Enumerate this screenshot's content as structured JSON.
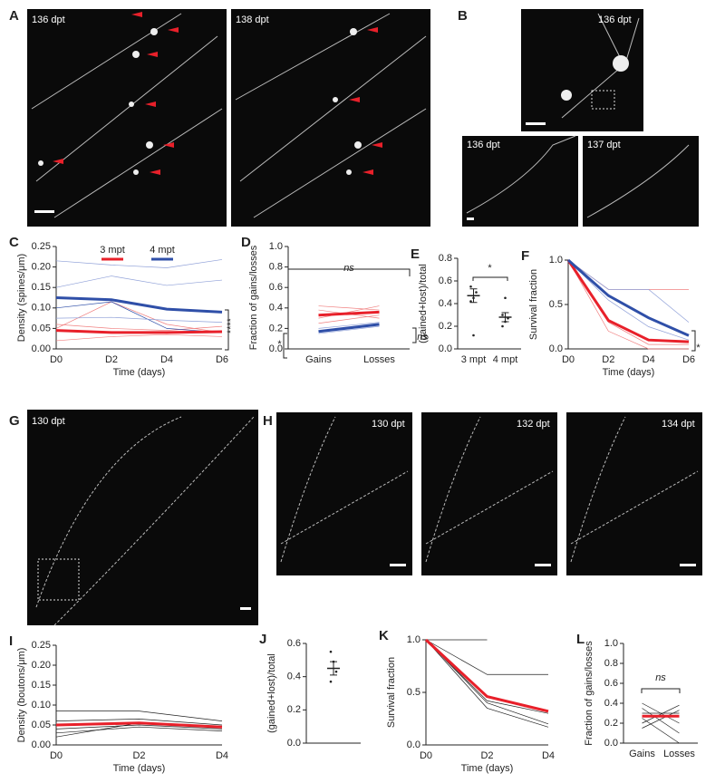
{
  "panel_labels": [
    "A",
    "B",
    "G",
    "H"
  ],
  "image_labels": [
    "136 dpt",
    "138 dpt",
    "136 dpt",
    "136 dpt",
    "137 dpt",
    "130 dpt",
    "130 dpt",
    "132 dpt",
    "134 dpt"
  ],
  "chart_data": [
    {
      "type": "line",
      "panel": "C",
      "ylabel": "Density (spines/μm)",
      "xlabel": "Time (days)",
      "categories": [
        "D0",
        "D2",
        "D4",
        "D6"
      ],
      "ylim": [
        0,
        0.25
      ],
      "yticks": [
        {
          "value": 0,
          "label": "0.00"
        },
        0.05,
        {
          "value": 0.1,
          "label": "0.10"
        },
        0.15,
        {
          "value": 0.2,
          "label": "0.20"
        },
        0.25
      ],
      "series": [
        {
          "name": "3 mpt",
          "color": "#e8202a",
          "values": [
            0.045,
            0.04,
            0.04,
            0.042
          ]
        },
        {
          "name": "4 mpt",
          "color": "#2f4fa8",
          "values": [
            0.125,
            0.12,
            0.097,
            0.09
          ]
        }
      ],
      "traces": [
        {
          "color": "#f08080",
          "values": [
            0.05,
            0.115,
            0.06,
            0.04
          ]
        },
        {
          "color": "#f08080",
          "values": [
            0.02,
            0.03,
            0.035,
            0.03
          ]
        },
        {
          "color": "#f08080",
          "values": [
            0.06,
            0.05,
            0.045,
            0.055
          ]
        },
        {
          "color": "#8fa0d8",
          "values": [
            0.215,
            0.205,
            0.198,
            0.218
          ]
        },
        {
          "color": "#8fa0d8",
          "values": [
            0.15,
            0.178,
            0.155,
            0.168
          ]
        },
        {
          "color": "#2f4fa8",
          "values": [
            0.1,
            0.115,
            0.05,
            0.04
          ]
        },
        {
          "color": "#8fa0d8",
          "values": [
            0.075,
            0.077,
            0.07,
            0.065
          ]
        }
      ],
      "annotations": [
        "****"
      ]
    },
    {
      "type": "line",
      "panel": "D",
      "ylabel": "Fraction of gains/losses",
      "categories": [
        "Gains",
        "Losses"
      ],
      "ylim": [
        0,
        1
      ],
      "yticks": [
        {
          "value": 0,
          "label": "0.0"
        },
        0.2,
        0.4,
        0.6,
        0.8,
        {
          "value": 1,
          "label": "1.0"
        }
      ],
      "series": [
        {
          "color": "#e8202a",
          "values": [
            0.33,
            0.36
          ]
        },
        {
          "color": "#2f4fa8",
          "values": [
            0.17,
            0.24
          ]
        }
      ],
      "traces": [
        {
          "color": "#f08080",
          "values": [
            0.3,
            0.42
          ]
        },
        {
          "color": "#f08080",
          "values": [
            0.38,
            0.3
          ]
        },
        {
          "color": "#f08080",
          "values": [
            0.25,
            0.33
          ]
        },
        {
          "color": "#f08080",
          "values": [
            0.42,
            0.38
          ]
        },
        {
          "color": "#8fa0d8",
          "values": [
            0.15,
            0.22
          ]
        },
        {
          "color": "#8fa0d8",
          "values": [
            0.2,
            0.26
          ]
        }
      ],
      "annotations": [
        "ns",
        "ns",
        "*"
      ]
    },
    {
      "type": "dot",
      "panel": "E",
      "ylabel": "(gained+lost)/total",
      "ylim": [
        0,
        0.8
      ],
      "yticks": [
        {
          "value": 0,
          "label": "0.0"
        },
        0.2,
        0.4,
        0.6,
        0.8
      ],
      "groups": [
        {
          "category": "3 mpt",
          "values": [
            0.42,
            0.45,
            0.5,
            0.55,
            0.12
          ],
          "mean": 0.47,
          "error": 0.06
        },
        {
          "category": "4 mpt",
          "values": [
            0.2,
            0.24,
            0.27,
            0.3,
            0.45
          ],
          "mean": 0.28,
          "error": 0.04
        }
      ],
      "annotations": [
        "*"
      ]
    },
    {
      "type": "line",
      "panel": "F",
      "ylabel": "Survival fraction",
      "xlabel": "Time (days)",
      "categories": [
        "D0",
        "D2",
        "D4",
        "D6"
      ],
      "ylim": [
        0,
        1
      ],
      "yticks": [
        {
          "value": 0,
          "label": "0.0"
        },
        0.5,
        {
          "value": 1,
          "label": "1.0"
        }
      ],
      "series": [
        {
          "color": "#e8202a",
          "values": [
            1,
            0.32,
            0.1,
            0.08
          ]
        },
        {
          "color": "#2f4fa8",
          "values": [
            1,
            0.6,
            0.35,
            0.15
          ]
        }
      ],
      "traces": [
        {
          "color": "#f08080",
          "values": [
            1,
            0.67,
            0.67,
            0.67
          ]
        },
        {
          "color": "#f08080",
          "values": [
            1,
            0.2,
            0,
            0
          ]
        },
        {
          "color": "#f08080",
          "values": [
            1,
            0.3,
            0.05,
            0.05
          ]
        },
        {
          "color": "#8fa0d8",
          "values": [
            1,
            0.67,
            0.67,
            0.3
          ]
        },
        {
          "color": "#8fa0d8",
          "values": [
            1,
            0.55,
            0.25,
            0.1
          ]
        }
      ],
      "annotations": [
        "*"
      ]
    },
    {
      "type": "line",
      "panel": "I",
      "ylabel": "Density (boutons/μm)",
      "xlabel": "Time (days)",
      "categories": [
        "D0",
        "D2",
        "D4"
      ],
      "ylim": [
        0,
        0.25
      ],
      "yticks": [
        {
          "value": 0,
          "label": "0.00"
        },
        0.05,
        {
          "value": 0.1,
          "label": "0.10"
        },
        0.15,
        {
          "value": 0.2,
          "label": "0.20"
        },
        0.25
      ],
      "series": [
        {
          "color": "#e8202a",
          "values": [
            0.05,
            0.055,
            0.045
          ]
        }
      ],
      "traces": [
        {
          "color": "#222",
          "values": [
            0.085,
            0.085,
            0.06
          ]
        },
        {
          "color": "#222",
          "values": [
            0.06,
            0.065,
            0.05
          ]
        },
        {
          "color": "#222",
          "values": [
            0.04,
            0.05,
            0.04
          ]
        },
        {
          "color": "#222",
          "values": [
            0.03,
            0.045,
            0.035
          ]
        },
        {
          "color": "#222",
          "values": [
            0.02,
            0.055,
            0.045
          ]
        }
      ]
    },
    {
      "type": "dot",
      "panel": "J",
      "ylabel": "(gained+lost)/total",
      "ylim": [
        0,
        0.6
      ],
      "yticks": [
        {
          "value": 0,
          "label": "0.0"
        },
        0.2,
        0.4,
        0.6
      ],
      "groups": [
        {
          "values": [
            0.55,
            0.49,
            0.43,
            0.37
          ],
          "mean": 0.45,
          "error": 0.04
        }
      ]
    },
    {
      "type": "line",
      "panel": "K",
      "ylabel": "Survival fraction",
      "xlabel": "Time (days)",
      "categories": [
        "D0",
        "D2",
        "D4"
      ],
      "ylim": [
        0,
        1
      ],
      "yticks": [
        {
          "value": 0,
          "label": "0.0"
        },
        0.5,
        {
          "value": 1,
          "label": "1.0"
        }
      ],
      "series": [
        {
          "color": "#e8202a",
          "values": [
            1,
            0.46,
            0.32
          ]
        }
      ],
      "traces": [
        {
          "color": "#222",
          "values": [
            1,
            1,
            null
          ]
        },
        {
          "color": "#222",
          "values": [
            1,
            0.67,
            0.67
          ]
        },
        {
          "color": "#222",
          "values": [
            1,
            0.4,
            0.2
          ]
        },
        {
          "color": "#222",
          "values": [
            1,
            0.35,
            0.17
          ]
        },
        {
          "color": "#222",
          "values": [
            1,
            0.42,
            0.3
          ]
        }
      ]
    },
    {
      "type": "line",
      "panel": "L",
      "ylabel": "Fraction of gains/losses",
      "categories": [
        "Gains",
        "Losses"
      ],
      "ylim": [
        0,
        1
      ],
      "yticks": [
        {
          "value": 0,
          "label": "0.0"
        },
        0.2,
        0.4,
        0.6,
        0.8,
        {
          "value": 1,
          "label": "1.0"
        }
      ],
      "series": [
        {
          "color": "#e8202a",
          "values": [
            0.27,
            0.27
          ]
        }
      ],
      "traces": [
        {
          "color": "#222",
          "values": [
            0.4,
            0.2
          ]
        },
        {
          "color": "#222",
          "values": [
            0.2,
            0.38
          ]
        },
        {
          "color": "#222",
          "values": [
            0.3,
            0.3
          ]
        },
        {
          "color": "#222",
          "values": [
            0.35,
            0.1
          ]
        },
        {
          "color": "#222",
          "values": [
            0.15,
            0.33
          ]
        },
        {
          "color": "#222",
          "values": [
            0.25,
            0.0
          ]
        }
      ],
      "annotations": [
        "ns"
      ]
    }
  ]
}
